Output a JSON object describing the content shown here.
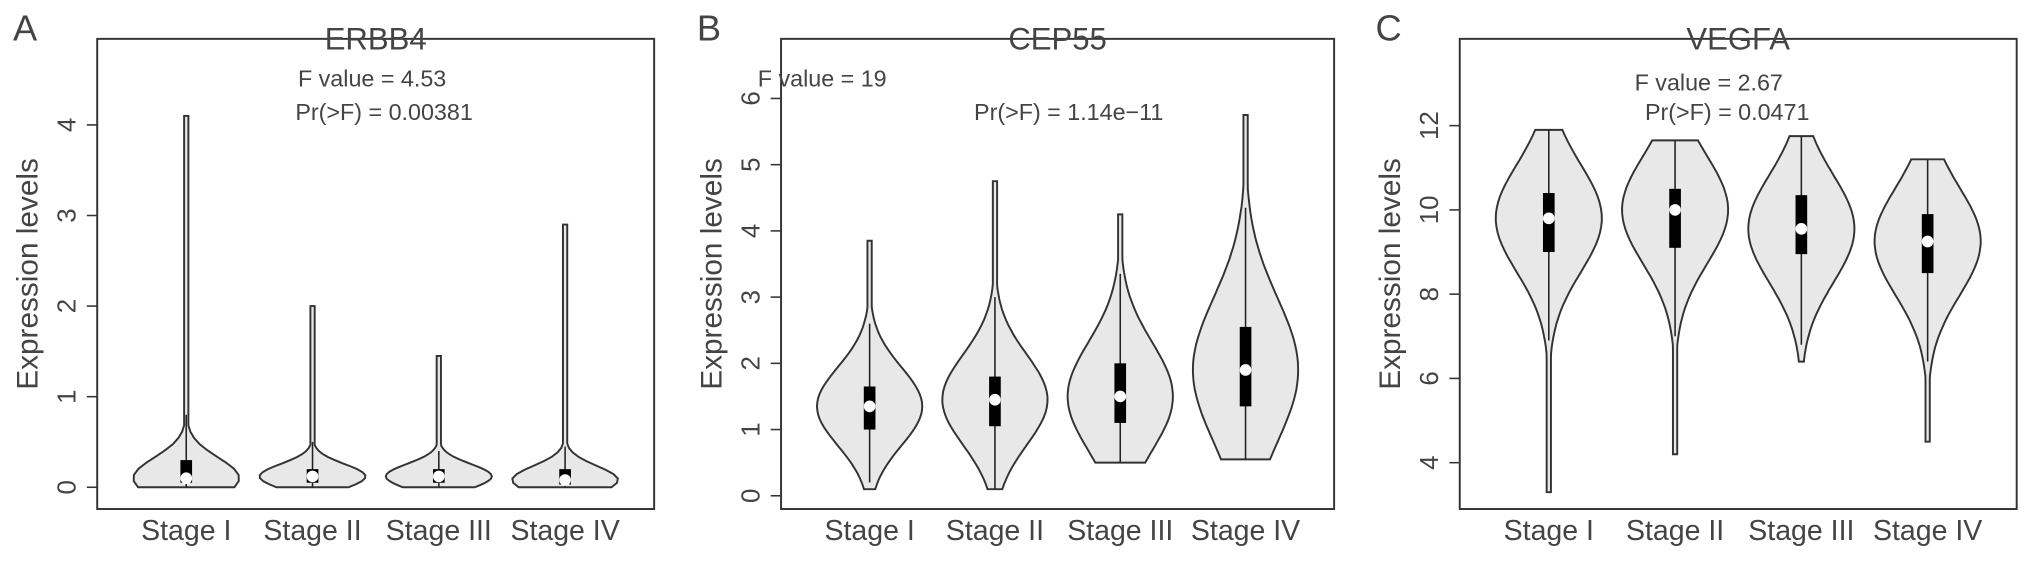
{
  "chart_data": [
    {
      "type": "violin",
      "panel_label": "A",
      "title": "ERBB4",
      "ylabel": "Expression levels",
      "annotations": [
        "F value = 4.53",
        "Pr(>F) = 0.00381"
      ],
      "categories": [
        "Stage I",
        "Stage II",
        "Stage III",
        "Stage IV"
      ],
      "min": [
        0,
        0,
        0,
        0
      ],
      "whisker_low": [
        0,
        0,
        0,
        0
      ],
      "q1": [
        0.05,
        0.05,
        0.05,
        0.03
      ],
      "median": [
        0.1,
        0.12,
        0.12,
        0.08
      ],
      "q3": [
        0.3,
        0.2,
        0.2,
        0.2
      ],
      "whisker_high": [
        0.8,
        0.5,
        0.4,
        0.45
      ],
      "max": [
        4.1,
        2.0,
        1.45,
        2.9
      ],
      "ylim": [
        -0.24,
        4.95
      ],
      "yticks": [
        0,
        1,
        2,
        3,
        4
      ],
      "color": "#e8e8e8"
    },
    {
      "type": "violin",
      "panel_label": "B",
      "title": "CEP55",
      "ylabel": "Expression levels",
      "annotations": [
        "F value = 19",
        "Pr(>F) = 1.14e−11"
      ],
      "categories": [
        "Stage I",
        "Stage II",
        "Stage III",
        "Stage IV"
      ],
      "min": [
        0.1,
        0.1,
        0.5,
        0.55
      ],
      "whisker_low": [
        0.2,
        0.1,
        0.5,
        0.55
      ],
      "q1": [
        1.0,
        1.05,
        1.1,
        1.35
      ],
      "median": [
        1.35,
        1.45,
        1.5,
        1.9
      ],
      "q3": [
        1.65,
        1.8,
        2.0,
        2.55
      ],
      "whisker_high": [
        2.6,
        3.0,
        3.35,
        4.35
      ],
      "max": [
        3.85,
        4.75,
        4.25,
        5.75
      ],
      "ylim": [
        -0.2,
        6.9
      ],
      "yticks": [
        0,
        1,
        2,
        3,
        4,
        5,
        6
      ],
      "color": "#e8e8e8"
    },
    {
      "type": "violin",
      "panel_label": "C",
      "title": "VEGFA",
      "ylabel": "Expression levels",
      "annotations": [
        "F value = 2.67",
        "Pr(>F) = 0.0471"
      ],
      "categories": [
        "Stage I",
        "Stage II",
        "Stage III",
        "Stage IV"
      ],
      "min": [
        3.3,
        4.2,
        6.4,
        4.5
      ],
      "whisker_low": [
        6.9,
        7.0,
        6.8,
        6.4
      ],
      "q1": [
        9.0,
        9.1,
        8.95,
        8.5
      ],
      "median": [
        9.8,
        10.0,
        9.55,
        9.25
      ],
      "q3": [
        10.4,
        10.5,
        10.35,
        9.9
      ],
      "whisker_high": [
        11.9,
        11.65,
        11.75,
        11.2
      ],
      "max": [
        11.9,
        11.65,
        11.75,
        11.2
      ],
      "ylim": [
        2.9,
        14.06
      ],
      "yticks": [
        4,
        6,
        8,
        10,
        12
      ],
      "color": "#e8e8e8"
    }
  ]
}
